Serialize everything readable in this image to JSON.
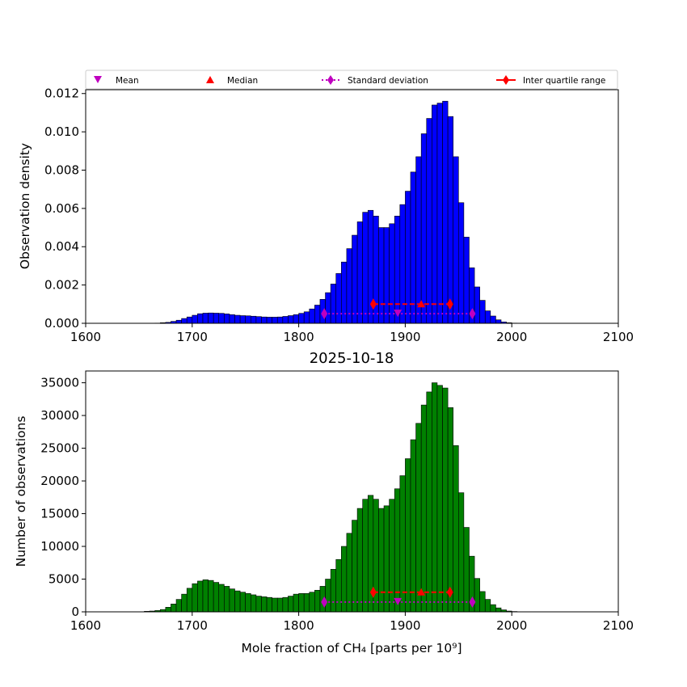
{
  "legend": {
    "mean": "Mean",
    "median": "Median",
    "std": "Standard deviation",
    "iqr": "Inter quartile range"
  },
  "colors": {
    "top_bars": "#0000ff",
    "bottom_bars": "#008000",
    "mean_marker": "#bf00bf",
    "std_marker": "#bf00bf",
    "median_marker": "#ff0000",
    "iqr_marker": "#ff0000"
  },
  "chart_data": [
    {
      "type": "bar",
      "title": "",
      "xlabel": "",
      "ylabel": "Observation density",
      "xlim": [
        1600,
        2100
      ],
      "ylim": [
        0,
        0.0122
      ],
      "xticks": [
        "1600",
        "1700",
        "1800",
        "1900",
        "2000",
        "2100"
      ],
      "yticks": [
        "0.000",
        "0.002",
        "0.004",
        "0.006",
        "0.008",
        "0.010",
        "0.012"
      ],
      "bin_start": 1665,
      "bin_width": 5,
      "values": [
        1e-05,
        3e-05,
        5e-05,
        0.0001,
        0.00016,
        0.00025,
        0.00033,
        0.00042,
        0.0005,
        0.00053,
        0.00054,
        0.00053,
        0.00052,
        0.00049,
        0.00045,
        0.00042,
        0.0004,
        0.00039,
        0.00037,
        0.00035,
        0.00033,
        0.00032,
        0.00032,
        0.00033,
        0.00036,
        0.0004,
        0.00045,
        0.00052,
        0.0006,
        0.00075,
        0.00095,
        0.00125,
        0.0016,
        0.00205,
        0.0026,
        0.0032,
        0.0039,
        0.0046,
        0.0053,
        0.0058,
        0.0059,
        0.0056,
        0.005,
        0.005,
        0.0052,
        0.0056,
        0.0062,
        0.0069,
        0.0079,
        0.0087,
        0.0099,
        0.0107,
        0.0114,
        0.0115,
        0.0116,
        0.0108,
        0.0087,
        0.0063,
        0.0045,
        0.0029,
        0.0019,
        0.0012,
        0.00065,
        0.00038,
        0.00018,
        7e-05,
        3e-05,
        1e-05
      ],
      "stats": {
        "mean": 1893,
        "median": 1915,
        "std_low": 1824,
        "std_high": 1963,
        "iqr_low": 1870,
        "iqr_high": 1942,
        "mean_y": 0.0005,
        "median_y": 0.001
      }
    },
    {
      "type": "bar",
      "title": "2025-10-18",
      "xlabel": "Mole fraction of CH₄ [parts per 10⁹]",
      "ylabel": "Number of observations",
      "xlim": [
        1600,
        2100
      ],
      "ylim": [
        0,
        36800
      ],
      "xticks": [
        "1600",
        "1700",
        "1800",
        "1900",
        "2000",
        "2100"
      ],
      "yticks": [
        "0",
        "5000",
        "10000",
        "15000",
        "20000",
        "25000",
        "30000",
        "35000"
      ],
      "bin_start": 1655,
      "bin_width": 5,
      "values": [
        80,
        120,
        200,
        350,
        700,
        1200,
        1900,
        2700,
        3600,
        4300,
        4700,
        4900,
        4800,
        4500,
        4200,
        3900,
        3500,
        3200,
        3000,
        2800,
        2600,
        2400,
        2300,
        2200,
        2100,
        2100,
        2200,
        2400,
        2700,
        2800,
        2800,
        3000,
        3300,
        3900,
        5000,
        6500,
        8000,
        10000,
        12000,
        14000,
        15800,
        17200,
        17800,
        17200,
        15800,
        16200,
        17200,
        18800,
        20800,
        23400,
        26300,
        28800,
        31600,
        33600,
        35000,
        34600,
        34200,
        31200,
        25400,
        18200,
        12900,
        8500,
        5100,
        3100,
        1900,
        1100,
        600,
        300,
        120,
        50
      ],
      "stats": {
        "mean": 1893,
        "median": 1915,
        "std_low": 1824,
        "std_high": 1963,
        "iqr_low": 1870,
        "iqr_high": 1942,
        "mean_y": 1500,
        "median_y": 3000
      }
    }
  ]
}
